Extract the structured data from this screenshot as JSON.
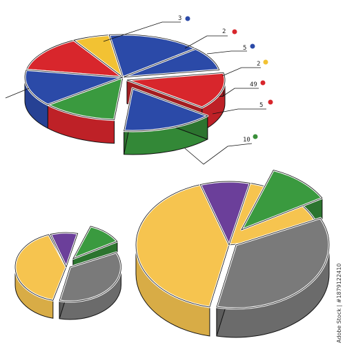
{
  "labels": [
    {
      "text": "3",
      "color": "#2b4aa8"
    },
    {
      "text": "2",
      "color": "#d8262c"
    },
    {
      "text": "5",
      "color": "#2b4aa8"
    },
    {
      "text": "2",
      "color": "#f2c233"
    },
    {
      "text": "49",
      "color": "#d8262c"
    },
    {
      "text": "5",
      "color": "#d8262c"
    },
    {
      "text": "10",
      "color": "#3a8f3a"
    }
  ],
  "watermark": "Adobe Stock | #1879122410"
}
